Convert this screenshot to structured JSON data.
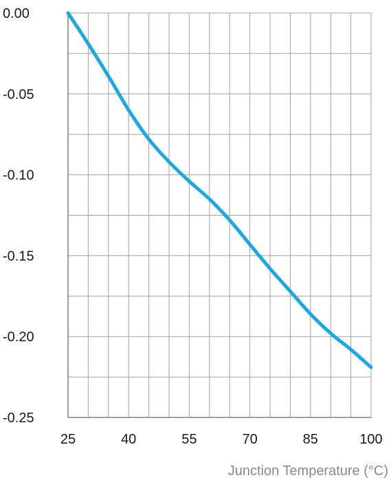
{
  "chart_data": {
    "type": "line",
    "title": "",
    "xlabel": "Junction Temperature (°C)",
    "ylabel": "",
    "xlim": [
      25,
      100
    ],
    "ylim": [
      -0.25,
      0.0
    ],
    "x_ticks": [
      25,
      40,
      55,
      70,
      85,
      100
    ],
    "x_tick_labels": [
      "25",
      "40",
      "55",
      "70",
      "85",
      "100"
    ],
    "y_ticks": [
      0.0,
      -0.05,
      -0.1,
      -0.15,
      -0.2,
      -0.25
    ],
    "y_tick_labels": [
      "0.00",
      "-0.05",
      "-0.10",
      "-0.15",
      "-0.20",
      "-0.25"
    ],
    "grid": true,
    "x_minor_step": 5,
    "y_minor_step": 0.025,
    "legend": "none",
    "series": [
      {
        "color": "#1ba9e1",
        "x": [
          25,
          30,
          35,
          40,
          45,
          50,
          55,
          60,
          65,
          70,
          75,
          80,
          85,
          90,
          95,
          100
        ],
        "y": [
          0.0,
          -0.019,
          -0.039,
          -0.06,
          -0.078,
          -0.092,
          -0.104,
          -0.115,
          -0.128,
          -0.143,
          -0.158,
          -0.172,
          -0.186,
          -0.198,
          -0.208,
          -0.219
        ]
      }
    ],
    "colors": {
      "grid": "#a0a0a0",
      "axis": "#808080",
      "line": "#1ba9e1",
      "tick_text": "#1a1a1a",
      "axis_label_text": "#8a8a8a"
    }
  }
}
